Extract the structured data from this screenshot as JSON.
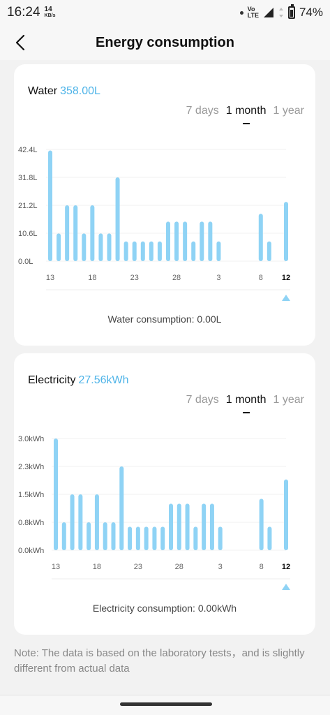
{
  "status": {
    "time": "16:24",
    "speed_value": "14",
    "speed_unit": "KB/s",
    "network_top": "Vo",
    "network_bottom": "LTE",
    "battery": "74%",
    "battery_level": 0.74
  },
  "header": {
    "title": "Energy consumption"
  },
  "water": {
    "label": "Water",
    "value": "358.00L",
    "tabs": [
      "7 days",
      "1 month",
      "1 year"
    ],
    "active_tab": "1 month",
    "consumption_label": "Water consumption: 0.00L"
  },
  "electricity": {
    "label": "Electricity",
    "value": "27.56kWh",
    "tabs": [
      "7 days",
      "1 month",
      "1 year"
    ],
    "active_tab": "1 month",
    "consumption_label": "Electricity consumption: 0.00kWh"
  },
  "note": "Note: The data is based on the laboratory tests，and is slightly different from actual data",
  "colors": {
    "accent": "#4fb4e8",
    "bar": "#8fd3f5",
    "indicator": "#8fd3f5"
  },
  "chart_data": [
    {
      "type": "bar",
      "series": [
        {
          "values": [
            42.0,
            10.5,
            21.2,
            21.2,
            10.5,
            21.2,
            10.5,
            10.5,
            31.8,
            7.5,
            7.5,
            7.5,
            7.5,
            7.5,
            15.0,
            15.0,
            15.0,
            7.5,
            15.0,
            15.0,
            7.5,
            0,
            0,
            0,
            0,
            18.0,
            7.5,
            0,
            22.5
          ]
        }
      ],
      "x_tick_labels": [
        "13",
        "18",
        "23",
        "28",
        "3",
        "8",
        "12"
      ],
      "y_tick_labels": [
        "42.4L",
        "31.8L",
        "21.2L",
        "10.6L",
        "0.0L"
      ],
      "ylim": [
        0,
        42.4
      ],
      "selected": "12"
    },
    {
      "type": "bar",
      "series": [
        {
          "values": [
            3.0,
            0.75,
            1.5,
            1.5,
            0.75,
            1.5,
            0.75,
            0.75,
            2.25,
            0.63,
            0.63,
            0.63,
            0.63,
            0.63,
            1.25,
            1.25,
            1.25,
            0.63,
            1.25,
            1.25,
            0.63,
            0,
            0,
            0,
            0,
            1.38,
            0.63,
            0,
            1.9
          ]
        }
      ],
      "x_tick_labels": [
        "13",
        "18",
        "23",
        "28",
        "3",
        "8",
        "12"
      ],
      "y_tick_labels": [
        "3.0kWh",
        "2.3kWh",
        "1.5kWh",
        "0.8kWh",
        "0.0kWh"
      ],
      "ylim": [
        0,
        3.0
      ],
      "selected": "12"
    }
  ]
}
